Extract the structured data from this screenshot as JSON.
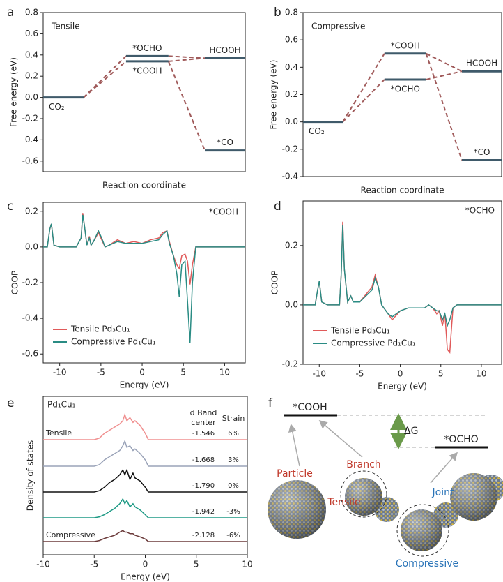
{
  "chart_data": [
    {
      "type": "energy_levels",
      "panel": "a",
      "label": "Tensile",
      "xlabel": "Reaction coordinate",
      "ylabel": "Free energy (eV)",
      "ylim": [
        -0.7,
        0.8
      ],
      "yticks": [
        0.8,
        0.6,
        0.4,
        0.2,
        {
          "value": 0,
          "label": "0.0"
        },
        -0.2,
        -0.4,
        -0.6
      ],
      "level_color": "#3f5a6a",
      "link_color": "#a05a5a",
      "levels": [
        {
          "name": "CO₂",
          "value": 0
        },
        {
          "name": "*OCHO",
          "value": 0.39
        },
        {
          "name": "*COOH",
          "value": 0.34
        },
        {
          "name": "HCOOH",
          "value": 0.37
        },
        {
          "name": "*CO",
          "value": -0.5
        }
      ]
    },
    {
      "type": "energy_levels",
      "panel": "b",
      "label": "Compressive",
      "xlabel": "Reaction coordinate",
      "ylabel": "Free energy (eV)",
      "ylim": [
        -0.4,
        0.8
      ],
      "yticks": [
        0.8,
        0.6,
        0.4,
        0.2,
        {
          "value": 0,
          "label": "0.0"
        },
        -0.2,
        -0.4
      ],
      "level_color": "#3f5a6a",
      "link_color": "#a05a5a",
      "levels": [
        {
          "name": "CO₂",
          "value": 0
        },
        {
          "name": "*COOH",
          "value": 0.5
        },
        {
          "name": "*OCHO",
          "value": 0.31
        },
        {
          "name": "HCOOH",
          "value": 0.37
        },
        {
          "name": "*CO",
          "value": -0.28
        }
      ]
    },
    {
      "type": "line",
      "panel": "c",
      "annotation": "*COOH",
      "xlabel": "Energy (eV)",
      "ylabel": "COOP",
      "xlim": [
        -12,
        12.5
      ],
      "ylim": [
        -0.65,
        0.25
      ],
      "xticks": [
        -10,
        -5,
        0,
        5,
        10
      ],
      "yticks": [
        0.2,
        {
          "value": 0,
          "label": "0.0"
        },
        -0.2,
        -0.4,
        -0.6
      ],
      "legend": "lower left",
      "x": [
        -12,
        -11.5,
        -11.2,
        -11,
        -10.7,
        -10,
        -8,
        -7.4,
        -7.2,
        -7,
        -6.7,
        -6.4,
        -6.2,
        -5.9,
        -5.3,
        -4.9,
        -4.5,
        -4,
        -3,
        -2,
        -1,
        0,
        1,
        2,
        2.5,
        3,
        3.3,
        3.8,
        4.2,
        4.5,
        4.8,
        5.2,
        5.5,
        5.8,
        6.1,
        6.5,
        7,
        12.5
      ],
      "series": [
        {
          "name": "Tensile Pd₃Cu₁",
          "color": "#e05a5a",
          "values": [
            0,
            0,
            0.1,
            0.13,
            0.01,
            0,
            0,
            0.05,
            0.19,
            0.12,
            0.01,
            0.06,
            0.01,
            0.03,
            0.08,
            0.04,
            0,
            0.01,
            0.04,
            0.02,
            0.03,
            0.02,
            0.04,
            0.05,
            0.08,
            0.09,
            0.03,
            -0.05,
            -0.1,
            -0.12,
            -0.05,
            -0.04,
            -0.08,
            -0.21,
            -0.1,
            0,
            0,
            0
          ]
        },
        {
          "name": "Compressive Pd₁Cu₁",
          "color": "#2a8c84",
          "values": [
            0,
            0,
            0.1,
            0.13,
            0.01,
            0,
            0,
            0.05,
            0.18,
            0.12,
            0.01,
            0.05,
            0.01,
            0.03,
            0.09,
            0.05,
            0,
            0.01,
            0.03,
            0.02,
            0.02,
            0.02,
            0.03,
            0.04,
            0.07,
            0.09,
            0.02,
            -0.05,
            -0.15,
            -0.28,
            -0.1,
            -0.08,
            -0.3,
            -0.54,
            -0.2,
            0,
            0,
            0
          ]
        }
      ]
    },
    {
      "type": "line",
      "panel": "d",
      "annotation": "*OCHO",
      "xlabel": "Energy (eV)",
      "ylabel": "COOP",
      "xlim": [
        -12,
        12.5
      ],
      "ylim": [
        -0.2,
        0.35
      ],
      "xticks": [
        -10,
        -5,
        0,
        5,
        10
      ],
      "yticks": [
        0.2,
        {
          "value": 0,
          "label": "0.0"
        },
        -0.2
      ],
      "legend": "lower left",
      "x": [
        -12,
        -10.5,
        -10.2,
        -10,
        -9.7,
        -9,
        -7.5,
        -7.3,
        -7.1,
        -6.9,
        -6.5,
        -6.1,
        -5.8,
        -5,
        -3.5,
        -3.1,
        -2.7,
        -2.3,
        -1.5,
        -1,
        0,
        1,
        2,
        3,
        3.5,
        4,
        4.5,
        4.8,
        5.2,
        5.5,
        5.8,
        6.1,
        6.5,
        7,
        12.5
      ],
      "series": [
        {
          "name": "Tensile Pd₃Cu₁",
          "color": "#e05a5a",
          "values": [
            0,
            0,
            0.05,
            0.08,
            0.01,
            0,
            0,
            0.1,
            0.28,
            0.12,
            0.01,
            0.03,
            0.01,
            0.01,
            0.06,
            0.1,
            0.06,
            0,
            -0.03,
            -0.05,
            -0.02,
            -0.01,
            -0.01,
            -0.01,
            0,
            -0.01,
            -0.03,
            -0.02,
            -0.07,
            -0.03,
            -0.15,
            -0.16,
            -0.01,
            0,
            0
          ]
        },
        {
          "name": "Compressive Pd₁Cu₁",
          "color": "#2a8c84",
          "values": [
            0,
            0,
            0.05,
            0.08,
            0.01,
            0,
            0,
            0.1,
            0.27,
            0.12,
            0.01,
            0.03,
            0.01,
            0.01,
            0.05,
            0.09,
            0.06,
            0,
            -0.03,
            -0.04,
            -0.02,
            -0.01,
            -0.01,
            -0.01,
            0,
            -0.01,
            -0.02,
            -0.02,
            -0.05,
            -0.03,
            -0.07,
            -0.05,
            -0.01,
            0,
            0
          ]
        }
      ]
    },
    {
      "type": "offset_lines",
      "panel": "e",
      "title": "Pd₁Cu₁",
      "xlabel": "Energy (eV)",
      "ylabel": "Density of states",
      "xlim": [
        -10,
        10
      ],
      "xticks": [
        -10,
        -5,
        0,
        5,
        10
      ],
      "center_header": [
        "d Band",
        "center"
      ],
      "strain_header": "Strain",
      "x": [
        -10,
        -5,
        -4.5,
        -4,
        -3.5,
        -3,
        -2.5,
        -2.2,
        -2,
        -1.8,
        -1.5,
        -1.2,
        -1,
        -0.5,
        0,
        0.3,
        10
      ],
      "series": [
        {
          "name": "Tensile",
          "color": "#f09090",
          "band_center": "-1.546",
          "strain": "6%",
          "values": [
            0,
            0,
            0.05,
            0.2,
            0.3,
            0.4,
            0.5,
            0.6,
            0.8,
            0.6,
            0.7,
            0.55,
            0.6,
            0.45,
            0.2,
            0,
            0
          ]
        },
        {
          "color": "#9aa3b8",
          "band_center": "-1.668",
          "strain": "3%",
          "values": [
            0,
            0,
            0.05,
            0.2,
            0.3,
            0.4,
            0.5,
            0.65,
            0.8,
            0.6,
            0.65,
            0.5,
            0.55,
            0.4,
            0.2,
            0,
            0
          ]
        },
        {
          "color": "#111111",
          "band_center": "-1.790",
          "strain": "0%",
          "values": [
            0,
            0,
            0.04,
            0.15,
            0.3,
            0.4,
            0.55,
            0.7,
            0.55,
            0.7,
            0.4,
            0.6,
            0.45,
            0.35,
            0.15,
            0,
            0
          ]
        },
        {
          "color": "#1e9a85",
          "band_center": "-1.942",
          "strain": "-3%",
          "values": [
            0,
            0,
            0.03,
            0.1,
            0.2,
            0.3,
            0.45,
            0.6,
            0.45,
            0.55,
            0.35,
            0.45,
            0.35,
            0.25,
            0.1,
            0,
            0
          ]
        },
        {
          "name": "Compressive",
          "color": "#6b3a3a",
          "band_center": "-2.128",
          "strain": "-6%",
          "values": [
            0,
            0,
            0.03,
            0.1,
            0.15,
            0.2,
            0.3,
            0.35,
            0.3,
            0.3,
            0.25,
            0.25,
            0.2,
            0.15,
            0.08,
            0,
            0
          ]
        }
      ]
    }
  ],
  "diagram": {
    "panel": "f",
    "levels": [
      "*COOH",
      "*OCHO"
    ],
    "delta": "ΔG",
    "labels": {
      "particle": "Particle",
      "branch": "Branch",
      "joint": "Joint",
      "tensile": "Tensile",
      "compressive": "Compressive"
    }
  }
}
